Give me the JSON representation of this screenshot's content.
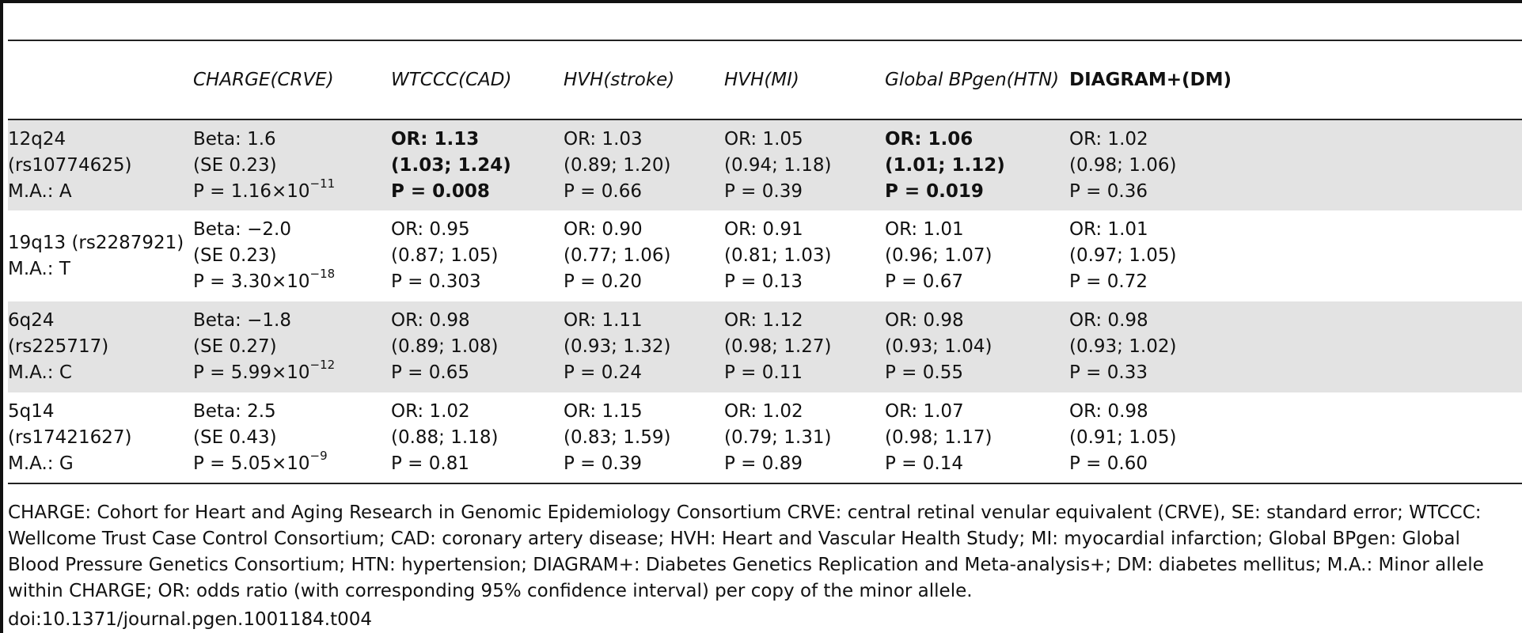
{
  "table": {
    "columns": [
      {
        "line1": "",
        "line2": ""
      },
      {
        "line1": "CHARGE",
        "line2": "(CRVE)"
      },
      {
        "line1": "WTCCC",
        "line2": "(CAD)"
      },
      {
        "line1": "HVH",
        "line2": "(stroke)"
      },
      {
        "line1": "HVH",
        "line2": "(MI)"
      },
      {
        "line1": "Global BPgen",
        "line2": "(HTN)"
      },
      {
        "line1": "DIAGRAM+",
        "line2": "(DM)"
      }
    ],
    "rows": [
      {
        "label": [
          "12q24",
          "(rs10774625)",
          "M.A.: A"
        ],
        "charge": {
          "beta": "Beta: 1.6",
          "se": "(SE 0.23)",
          "p_base": "P = 1.16×10",
          "p_exp": "−11"
        },
        "wtccc": [
          "OR: 1.13",
          "(1.03; 1.24)",
          "P = 0.008"
        ],
        "hvh_stroke": [
          "OR: 1.03",
          "(0.89; 1.20)",
          "P = 0.66"
        ],
        "hvh_mi": [
          "OR: 1.05",
          "(0.94; 1.18)",
          "P = 0.39"
        ],
        "bpgen": [
          "OR: 1.06",
          "(1.01; 1.12)",
          "P = 0.019"
        ],
        "diagram": [
          "OR: 1.02",
          "(0.98; 1.06)",
          "P = 0.36"
        ]
      },
      {
        "label": [
          "19q13 (rs2287921)",
          "M.A.: T",
          ""
        ],
        "charge": {
          "beta": "Beta: −2.0",
          "se": "(SE 0.23)",
          "p_base": "P = 3.30×10",
          "p_exp": "−18"
        },
        "wtccc": [
          "OR: 0.95",
          "(0.87; 1.05)",
          "P = 0.303"
        ],
        "hvh_stroke": [
          "OR: 0.90",
          "(0.77; 1.06)",
          "P = 0.20"
        ],
        "hvh_mi": [
          "OR: 0.91",
          "(0.81; 1.03)",
          "P = 0.13"
        ],
        "bpgen": [
          "OR: 1.01",
          "(0.96; 1.07)",
          "P = 0.67"
        ],
        "diagram": [
          "OR: 1.01",
          "(0.97; 1.05)",
          "P = 0.72"
        ]
      },
      {
        "label": [
          "6q24",
          "(rs225717)",
          "M.A.: C"
        ],
        "charge": {
          "beta": "Beta: −1.8",
          "se": "(SE 0.27)",
          "p_base": "P = 5.99×10",
          "p_exp": "−12"
        },
        "wtccc": [
          "OR: 0.98",
          "(0.89; 1.08)",
          "P = 0.65"
        ],
        "hvh_stroke": [
          "OR: 1.11",
          "(0.93; 1.32)",
          "P = 0.24"
        ],
        "hvh_mi": [
          "OR: 1.12",
          "(0.98; 1.27)",
          "P = 0.11"
        ],
        "bpgen": [
          "OR: 0.98",
          "(0.93; 1.04)",
          "P = 0.55"
        ],
        "diagram": [
          "OR: 0.98",
          "(0.93; 1.02)",
          "P = 0.33"
        ]
      },
      {
        "label": [
          "5q14",
          "(rs17421627)",
          "M.A.: G"
        ],
        "charge": {
          "beta": "Beta: 2.5",
          "se": "(SE 0.43)",
          "p_base": "P = 5.05×10",
          "p_exp": "−9"
        },
        "wtccc": [
          "OR: 1.02",
          "(0.88; 1.18)",
          "P = 0.81"
        ],
        "hvh_stroke": [
          "OR: 1.15",
          "(0.83; 1.59)",
          "P = 0.39"
        ],
        "hvh_mi": [
          "OR: 1.02",
          "(0.79; 1.31)",
          "P = 0.89"
        ],
        "bpgen": [
          "OR: 1.07",
          "(0.98; 1.17)",
          "P = 0.14"
        ],
        "diagram": [
          "OR: 0.98",
          "(0.91; 1.05)",
          "P = 0.60"
        ]
      }
    ]
  },
  "footnote": "CHARGE: Cohort for Heart and Aging Research in Genomic Epidemiology Consortium CRVE: central retinal venular equivalent (CRVE), SE: standard error; WTCCC: Wellcome Trust Case Control Consortium; CAD: coronary artery disease; HVH: Heart and Vascular Health Study; MI: myocardial infarction; Global BPgen: Global Blood Pressure Genetics Consortium; HTN: hypertension; DIAGRAM+: Diabetes Genetics Replication and Meta-analysis+; DM: diabetes mellitus; M.A.: Minor allele within CHARGE; OR: odds ratio (with corresponding 95% confidence interval) per copy of the minor allele.",
  "doi": "doi:10.1371/journal.pgen.1001184.t004"
}
